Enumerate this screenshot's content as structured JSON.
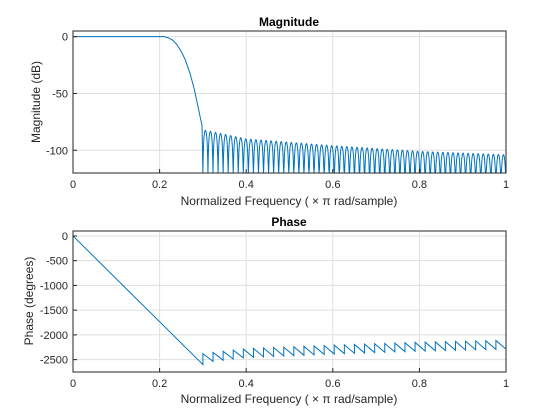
{
  "chart_data": [
    {
      "type": "line",
      "title": "Magnitude",
      "xlabel": "Normalized  Frequency    ( × π  rad/sample)",
      "ylabel": "Magnitude (dB)",
      "xlim": [
        0,
        1
      ],
      "ylim": [
        -120,
        5
      ],
      "xticks": [
        0,
        0.2,
        0.4,
        0.6,
        0.8,
        1
      ],
      "xtick_labels": [
        "0",
        "0.2",
        "0.4",
        "0.6",
        "0.8",
        "1"
      ],
      "yticks": [
        -100,
        -50,
        0
      ],
      "ytick_labels": [
        "-100",
        "-50",
        "0"
      ],
      "grid": true,
      "series_color": "#0072bd",
      "passband_edge": 0.21,
      "stopband_edge": 0.3,
      "stopband_lobes": 60,
      "x": [
        0,
        0.1,
        0.2,
        0.21,
        0.22,
        0.23,
        0.24,
        0.25,
        0.26,
        0.27,
        0.28,
        0.29,
        0.3,
        0.4,
        0.6,
        0.8,
        1.0
      ],
      "y": [
        0,
        0,
        0,
        0,
        -1,
        -3,
        -7,
        -13,
        -21,
        -32,
        -46,
        -64,
        -82,
        -90,
        -96,
        -101,
        -104
      ]
    },
    {
      "type": "line",
      "title": "Phase",
      "xlabel": "Normalized  Frequency    ( × π  rad/sample)",
      "ylabel": "Phase (degrees)",
      "xlim": [
        0,
        1
      ],
      "ylim": [
        -2750,
        100
      ],
      "xticks": [
        0,
        0.2,
        0.4,
        0.6,
        0.8,
        1
      ],
      "xtick_labels": [
        "0",
        "0.2",
        "0.4",
        "0.6",
        "0.8",
        "1"
      ],
      "yticks": [
        -2500,
        -2000,
        -1500,
        -1000,
        -500,
        0
      ],
      "ytick_labels": [
        "-2500",
        "-2000",
        "-1500",
        "-1000",
        "-500",
        "0"
      ],
      "grid": true,
      "series_color": "#0072bd",
      "stopband_teeth": 30,
      "tooth_height": 180,
      "x": [
        0,
        0.3,
        0.3,
        0.4,
        0.6,
        0.8,
        1.0
      ],
      "y": [
        0,
        -2600,
        -2450,
        -2350,
        -2280,
        -2220,
        -2180
      ]
    }
  ]
}
